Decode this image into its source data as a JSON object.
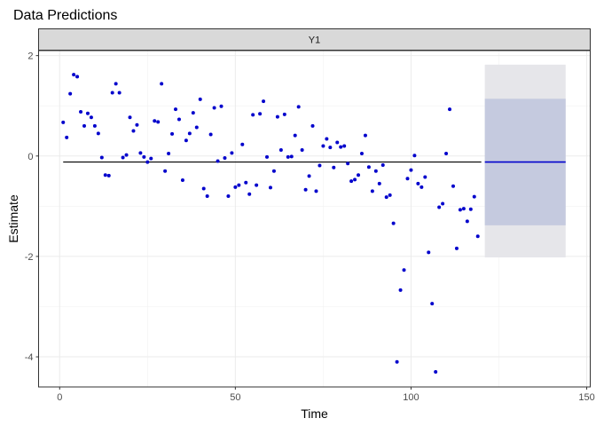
{
  "chart_data": {
    "type": "scatter",
    "title": "Data Predictions",
    "facet_label": "Y1",
    "xlabel": "Time",
    "ylabel": "Estimate",
    "xlim": [
      -6,
      151
    ],
    "ylim": [
      -4.6,
      2.1
    ],
    "x_ticks": [
      0,
      50,
      100,
      150
    ],
    "y_ticks": [
      -4,
      -2,
      0,
      2
    ],
    "grid": true,
    "points_color": "#0000cc",
    "fit_line": {
      "x": [
        1,
        120
      ],
      "y": [
        -0.12,
        -0.12
      ],
      "color": "#000000"
    },
    "forecast_line": {
      "x": [
        121,
        144
      ],
      "y": [
        -0.12,
        -0.12
      ],
      "color": "#0000cc"
    },
    "interval_outer": {
      "x": [
        121,
        144
      ],
      "lower": -2.02,
      "upper": 1.82,
      "color": "#e6e6ea"
    },
    "interval_inner": {
      "x": [
        121,
        144
      ],
      "lower": -1.38,
      "upper": 1.14,
      "color": "#c5cadf"
    },
    "points": [
      [
        1,
        0.67
      ],
      [
        2,
        0.37
      ],
      [
        3,
        1.24
      ],
      [
        4,
        1.62
      ],
      [
        5,
        1.58
      ],
      [
        6,
        0.88
      ],
      [
        7,
        0.6
      ],
      [
        8,
        0.85
      ],
      [
        9,
        0.77
      ],
      [
        10,
        0.6
      ],
      [
        11,
        0.45
      ],
      [
        12,
        -0.03
      ],
      [
        13,
        -0.38
      ],
      [
        14,
        -0.39
      ],
      [
        15,
        1.26
      ],
      [
        16,
        1.44
      ],
      [
        17,
        1.26
      ],
      [
        18,
        -0.03
      ],
      [
        19,
        0.02
      ],
      [
        20,
        0.77
      ],
      [
        21,
        0.5
      ],
      [
        22,
        0.62
      ],
      [
        23,
        0.06
      ],
      [
        24,
        -0.02
      ],
      [
        25,
        -0.12
      ],
      [
        26,
        -0.05
      ],
      [
        27,
        0.7
      ],
      [
        28,
        0.68
      ],
      [
        29,
        1.44
      ],
      [
        30,
        -0.3
      ],
      [
        31,
        0.05
      ],
      [
        32,
        0.44
      ],
      [
        33,
        0.93
      ],
      [
        34,
        0.73
      ],
      [
        35,
        -0.48
      ],
      [
        36,
        0.31
      ],
      [
        37,
        0.45
      ],
      [
        38,
        0.86
      ],
      [
        39,
        0.57
      ],
      [
        40,
        1.13
      ],
      [
        41,
        -0.65
      ],
      [
        42,
        -0.8
      ],
      [
        43,
        0.43
      ],
      [
        44,
        0.96
      ],
      [
        45,
        -0.1
      ],
      [
        46,
        0.99
      ],
      [
        47,
        -0.04
      ],
      [
        48,
        -0.8
      ],
      [
        49,
        0.06
      ],
      [
        50,
        -0.62
      ],
      [
        51,
        -0.58
      ],
      [
        52,
        0.23
      ],
      [
        53,
        -0.53
      ],
      [
        54,
        -0.76
      ],
      [
        55,
        0.82
      ],
      [
        56,
        -0.58
      ],
      [
        57,
        0.84
      ],
      [
        58,
        1.09
      ],
      [
        59,
        -0.02
      ],
      [
        60,
        -0.63
      ],
      [
        61,
        -0.3
      ],
      [
        62,
        0.78
      ],
      [
        63,
        0.12
      ],
      [
        64,
        0.83
      ],
      [
        65,
        -0.02
      ],
      [
        66,
        -0.01
      ],
      [
        67,
        0.41
      ],
      [
        68,
        0.98
      ],
      [
        69,
        0.12
      ],
      [
        70,
        -0.67
      ],
      [
        71,
        -0.4
      ],
      [
        72,
        0.6
      ],
      [
        73,
        -0.7
      ],
      [
        74,
        -0.19
      ],
      [
        75,
        0.2
      ],
      [
        76,
        0.34
      ],
      [
        77,
        0.17
      ],
      [
        78,
        -0.23
      ],
      [
        79,
        0.27
      ],
      [
        80,
        0.18
      ],
      [
        81,
        0.2
      ],
      [
        82,
        -0.15
      ],
      [
        83,
        -0.5
      ],
      [
        84,
        -0.47
      ],
      [
        85,
        -0.38
      ],
      [
        86,
        0.05
      ],
      [
        87,
        0.41
      ],
      [
        88,
        -0.22
      ],
      [
        89,
        -0.7
      ],
      [
        90,
        -0.3
      ],
      [
        91,
        -0.55
      ],
      [
        92,
        -0.18
      ],
      [
        93,
        -0.82
      ],
      [
        94,
        -0.78
      ],
      [
        95,
        -1.34
      ],
      [
        96,
        -4.1
      ],
      [
        97,
        -2.67
      ],
      [
        98,
        -2.27
      ],
      [
        99,
        -0.45
      ],
      [
        100,
        -0.28
      ],
      [
        101,
        0.01
      ],
      [
        102,
        -0.55
      ],
      [
        103,
        -0.62
      ],
      [
        104,
        -0.42
      ],
      [
        105,
        -1.92
      ],
      [
        106,
        -2.94
      ],
      [
        107,
        -4.3
      ],
      [
        108,
        -1.02
      ],
      [
        109,
        -0.95
      ],
      [
        110,
        0.05
      ],
      [
        111,
        0.93
      ],
      [
        112,
        -0.6
      ],
      [
        113,
        -1.84
      ],
      [
        114,
        -1.07
      ],
      [
        115,
        -1.05
      ],
      [
        116,
        -1.3
      ],
      [
        117,
        -1.06
      ],
      [
        118,
        -0.81
      ],
      [
        119,
        -1.6
      ]
    ]
  }
}
